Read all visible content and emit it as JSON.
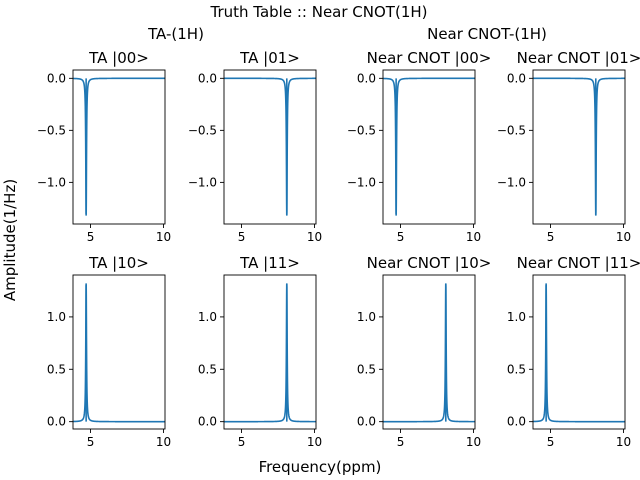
{
  "chart_data": {
    "type": "line",
    "title": "Truth Table :: Near CNOT(1H)",
    "xlabel": "Frequency(ppm)",
    "ylabel": "Amplitude(1/Hz)",
    "groups": [
      "TA-(1H)",
      "Near CNOT-(1H)"
    ],
    "line_color": "#1f77b4",
    "xlim": [
      3.8,
      10.1
    ],
    "x_ticks": [
      5,
      10
    ],
    "grid": false,
    "rows": [
      {
        "ylim": [
          -1.4,
          0.08
        ],
        "y_ticks": [
          0.0,
          -0.5,
          -1.0
        ],
        "y_tick_labels": [
          "0.0",
          "−0.5",
          "−1.0"
        ]
      },
      {
        "ylim": [
          -0.07,
          1.4
        ],
        "y_ticks": [
          0.0,
          0.5,
          1.0
        ],
        "y_tick_labels": [
          "0.0",
          "0.5",
          "1.0"
        ]
      }
    ],
    "panels": [
      {
        "title": "TA |00>",
        "peak_ppm": 4.7,
        "peak_amplitude": -1.32,
        "baseline": 0.0,
        "row": 0,
        "col": 0
      },
      {
        "title": "TA |01>",
        "peak_ppm": 8.1,
        "peak_amplitude": -1.32,
        "baseline": 0.0,
        "row": 0,
        "col": 1
      },
      {
        "title": "Near CNOT |00>",
        "peak_ppm": 4.7,
        "peak_amplitude": -1.32,
        "baseline": 0.0,
        "row": 0,
        "col": 2
      },
      {
        "title": "Near CNOT |01>",
        "peak_ppm": 8.1,
        "peak_amplitude": -1.32,
        "baseline": 0.0,
        "row": 0,
        "col": 3
      },
      {
        "title": "TA |10>",
        "peak_ppm": 4.7,
        "peak_amplitude": 1.32,
        "baseline": 0.0,
        "row": 1,
        "col": 0
      },
      {
        "title": "TA |11>",
        "peak_ppm": 8.1,
        "peak_amplitude": 1.32,
        "baseline": 0.0,
        "row": 1,
        "col": 1
      },
      {
        "title": "Near CNOT |10>",
        "peak_ppm": 8.1,
        "peak_amplitude": 1.32,
        "baseline": 0.0,
        "row": 1,
        "col": 2
      },
      {
        "title": "Near CNOT |11>",
        "peak_ppm": 4.7,
        "peak_amplitude": 1.32,
        "baseline": 0.0,
        "row": 1,
        "col": 3
      }
    ]
  }
}
